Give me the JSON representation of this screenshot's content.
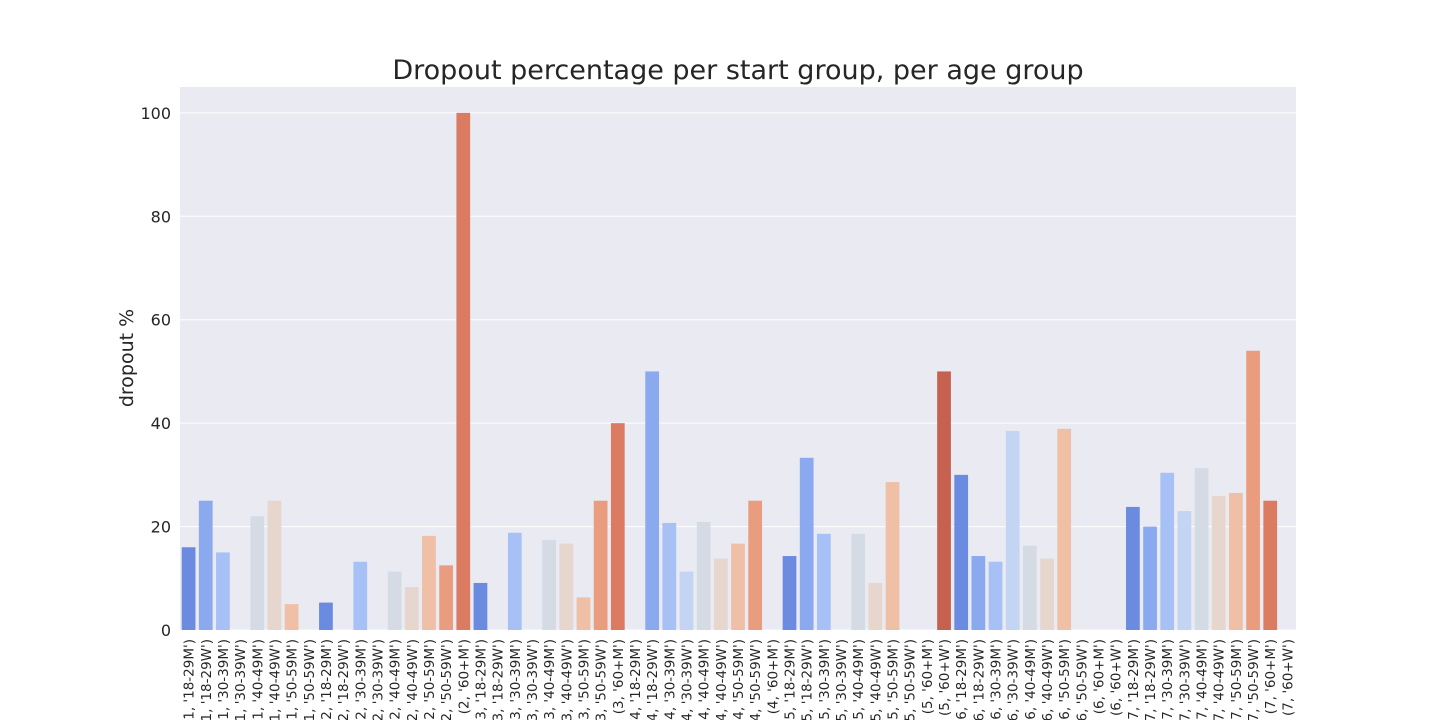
{
  "chart_data": {
    "type": "bar",
    "title": "Dropout percentage per start group, per age group",
    "xlabel": "",
    "ylabel": "dropout %",
    "ylim": [
      0,
      105
    ],
    "yticks": [
      0,
      20,
      40,
      60,
      80,
      100
    ],
    "grid": true,
    "background": "#eaeaf2",
    "gridColor": "#ffffff",
    "palette": "coolwarm",
    "categories": [
      "(1, '18-29M')",
      "(1, '18-29W')",
      "(1, '30-39M')",
      "(1, '30-39W')",
      "(1, '40-49M')",
      "(1, '40-49W')",
      "(1, '50-59M')",
      "(1, '50-59W')",
      "(2, '18-29M')",
      "(2, '18-29W')",
      "(2, '30-39M')",
      "(2, '30-39W')",
      "(2, '40-49M')",
      "(2, '40-49W')",
      "(2, '50-59M')",
      "(2, '50-59W')",
      "(2, '60+M')",
      "(3, '18-29M')",
      "(3, '18-29W')",
      "(3, '30-39M')",
      "(3, '30-39W')",
      "(3, '40-49M')",
      "(3, '40-49W')",
      "(3, '50-59M')",
      "(3, '50-59W')",
      "(3, '60+M')",
      "(4, '18-29M')",
      "(4, '18-29W')",
      "(4, '30-39M')",
      "(4, '30-39W')",
      "(4, '40-49M')",
      "(4, '40-49W')",
      "(4, '50-59M')",
      "(4, '50-59W')",
      "(4, '60+M')",
      "(5, '18-29M')",
      "(5, '18-29W')",
      "(5, '30-39M')",
      "(5, '30-39W')",
      "(5, '40-49M')",
      "(5, '40-49W')",
      "(5, '50-59M')",
      "(5, '50-59W')",
      "(5, '60+M')",
      "(5, '60+W')",
      "(6, '18-29M')",
      "(6, '18-29W')",
      "(6, '30-39M')",
      "(6, '30-39W')",
      "(6, '40-49M')",
      "(6, '40-49W')",
      "(6, '50-59M')",
      "(6, '50-59W')",
      "(6, '60+M')",
      "(6, '60+W')",
      "(7, '18-29M')",
      "(7, '18-29W')",
      "(7, '30-39M')",
      "(7, '30-39W')",
      "(7, '40-49M')",
      "(7, '40-49W')",
      "(7, '50-59M')",
      "(7, '50-59W')",
      "(7, '60+M')",
      "(7, '60+W')"
    ],
    "values": [
      16,
      25,
      15,
      0,
      22,
      25,
      5,
      0,
      5.3,
      0,
      13.2,
      0,
      11.3,
      8.3,
      18.2,
      12.5,
      100,
      9.1,
      0,
      18.8,
      0,
      17.4,
      16.7,
      6.3,
      25,
      40,
      0,
      50,
      20.7,
      11.3,
      20.9,
      13.8,
      16.7,
      25,
      0,
      14.3,
      33.3,
      18.6,
      0,
      18.6,
      9.1,
      28.6,
      0,
      0,
      50,
      30,
      14.3,
      13.2,
      38.5,
      16.3,
      13.8,
      38.9,
      0,
      0,
      0,
      23.8,
      20,
      30.4,
      23,
      31.3,
      25.9,
      26.5,
      54,
      25,
      0
    ],
    "colors": [
      "#6a8be0",
      "#8aa9ef",
      "#a7c1f7",
      "#c3d5f3",
      "#d5dbe5",
      "#e6d6cd",
      "#efbfa6",
      "#e99c7e",
      "#6a8be0",
      "#8aa9ef",
      "#a7c1f7",
      "#c3d5f3",
      "#d5dbe5",
      "#e6d6cd",
      "#efbfa6",
      "#e99c7e",
      "#db7b62",
      "#6a8be0",
      "#8aa9ef",
      "#a7c1f7",
      "#c3d5f3",
      "#d5dbe5",
      "#e6d6cd",
      "#efbfa6",
      "#e99c7e",
      "#db7b62",
      "#6a8be0",
      "#8aa9ef",
      "#a7c1f7",
      "#c3d5f3",
      "#d5dbe5",
      "#e6d6cd",
      "#efbfa6",
      "#e99c7e",
      "#db7b62",
      "#6a8be0",
      "#8aa9ef",
      "#a7c1f7",
      "#c3d5f3",
      "#d5dbe5",
      "#e6d6cd",
      "#efbfa6",
      "#e99c7e",
      "#db7b62",
      "#c4614f",
      "#6a8be0",
      "#8aa9ef",
      "#a7c1f7",
      "#c3d5f3",
      "#d5dbe5",
      "#e6d6cd",
      "#efbfa6",
      "#e99c7e",
      "#db7b62",
      "#c4614f",
      "#6a8be0",
      "#8aa9ef",
      "#a7c1f7",
      "#c3d5f3",
      "#d5dbe5",
      "#e6d6cd",
      "#efbfa6",
      "#e99c7e",
      "#db7b62",
      "#c4614f"
    ]
  }
}
